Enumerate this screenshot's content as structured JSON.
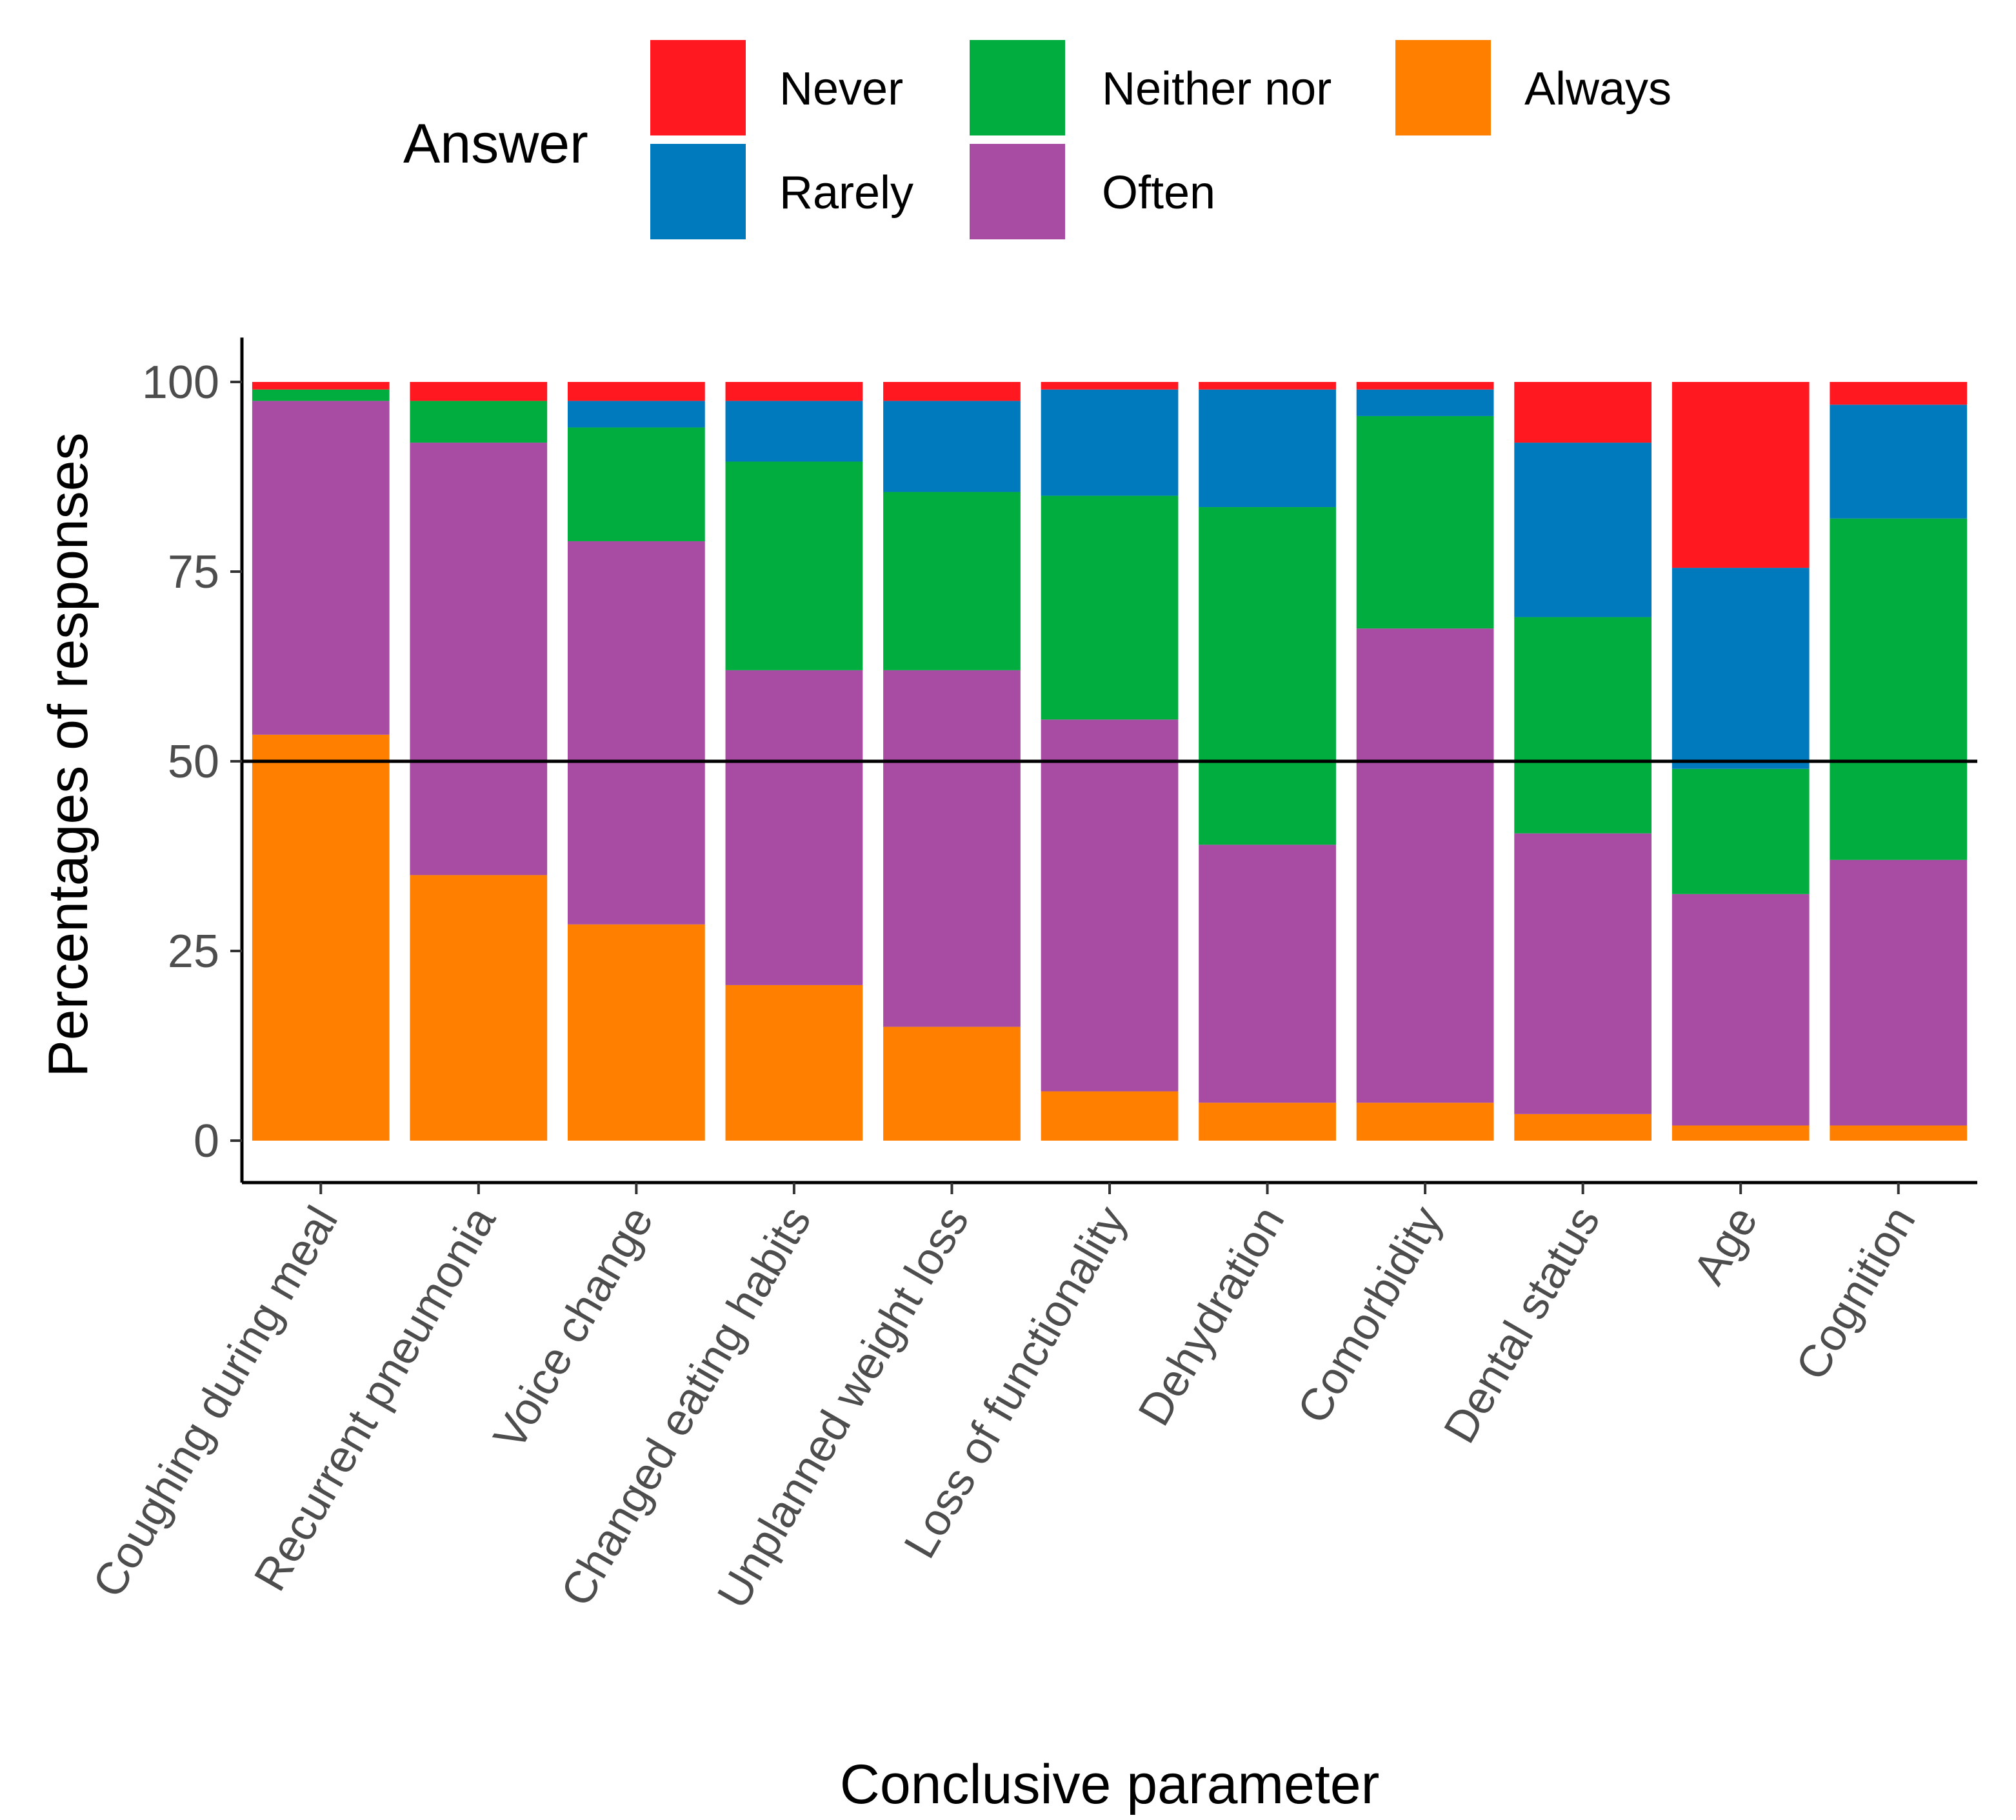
{
  "chart_data": {
    "type": "bar",
    "stacked": true,
    "normalized_percent": true,
    "title": "",
    "xlabel": "Conclusive parameter",
    "ylabel": "Percentages of responses",
    "ylim": [
      0,
      105
    ],
    "yticks": [
      0,
      25,
      50,
      75,
      100
    ],
    "reference_line_y": 50,
    "grid": false,
    "legend": {
      "title": "Answer",
      "position": "top",
      "order": [
        "Never",
        "Rarely",
        "Neither nor",
        "Often",
        "Always"
      ]
    },
    "categories": [
      "Coughing during meal",
      "Recurrent pneumonia",
      "Voice change",
      "Changed eating habits",
      "Unplanned weight loss",
      "Loss of functionality",
      "Dehydration",
      "Comorbidity",
      "Dental status",
      "Age",
      "Cognition"
    ],
    "series": [
      {
        "name": "Always",
        "color": "#FF7F00",
        "values": [
          53.5,
          35,
          28.5,
          20.5,
          15,
          6.5,
          5,
          5,
          3.5,
          2,
          2
        ]
      },
      {
        "name": "Often",
        "color": "#A84BA2",
        "values": [
          44,
          57,
          50.5,
          41.5,
          47,
          49,
          34,
          62.5,
          37,
          30.5,
          35
        ]
      },
      {
        "name": "Neither nor",
        "color": "#00AD3E",
        "values": [
          1.5,
          5.5,
          15,
          27.5,
          23.5,
          29.5,
          44.5,
          28,
          28.5,
          16.5,
          45
        ]
      },
      {
        "name": "Rarely",
        "color": "#0079BD",
        "values": [
          0,
          0,
          3.5,
          8,
          12,
          14,
          15.5,
          3.5,
          23,
          26.5,
          15
        ]
      },
      {
        "name": "Never",
        "color": "#FF1820",
        "values": [
          1,
          2.5,
          2.5,
          2.5,
          2.5,
          1,
          1,
          1,
          8,
          24.5,
          3
        ]
      }
    ]
  }
}
